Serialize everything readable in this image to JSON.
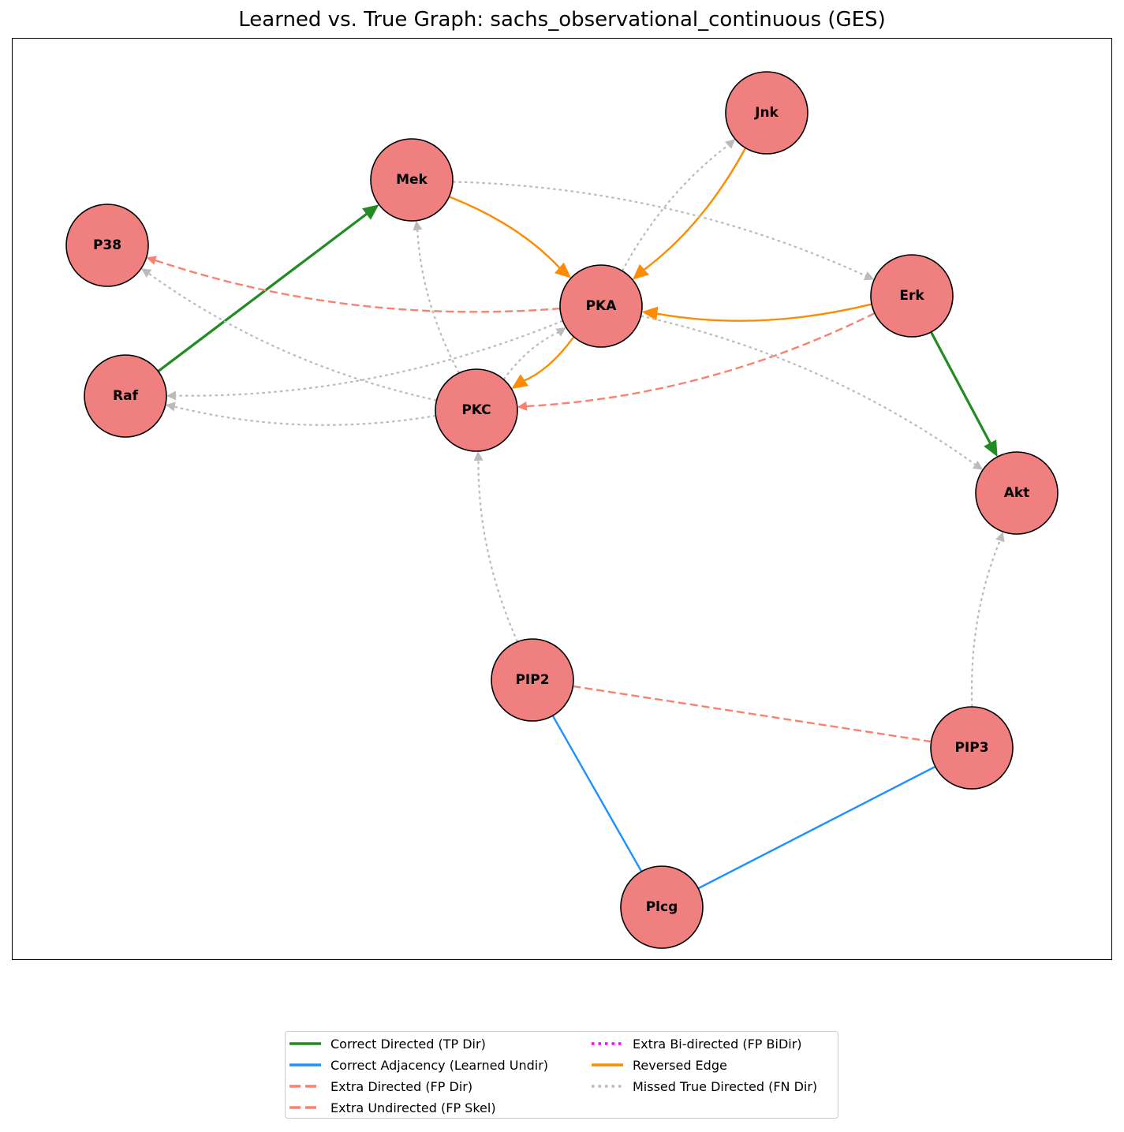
{
  "title": "Learned vs. True Graph: sachs_observational_continuous (GES)",
  "colors": {
    "node_fill": "#f08080",
    "node_stroke": "#000000",
    "tp_dir": "#228b22",
    "correct_adj": "#1e90ff",
    "fp_dir": "#fa8072",
    "fp_skel": "#fa8072",
    "fp_bidir": "#ff00ff",
    "reversed": "#ff8c00",
    "fn_dir": "#bbbbbb"
  },
  "nodes": [
    {
      "id": "Jnk",
      "label": "Jnk"
    },
    {
      "id": "Mek",
      "label": "Mek"
    },
    {
      "id": "P38",
      "label": "P38"
    },
    {
      "id": "PKA",
      "label": "PKA"
    },
    {
      "id": "Erk",
      "label": "Erk"
    },
    {
      "id": "Raf",
      "label": "Raf"
    },
    {
      "id": "PKC",
      "label": "PKC"
    },
    {
      "id": "Akt",
      "label": "Akt"
    },
    {
      "id": "PIP2",
      "label": "PIP2"
    },
    {
      "id": "PIP3",
      "label": "PIP3"
    },
    {
      "id": "Plcg",
      "label": "Plcg"
    }
  ],
  "edges": [
    {
      "from": "Raf",
      "to": "Mek",
      "type": "tp_dir"
    },
    {
      "from": "Erk",
      "to": "Akt",
      "type": "tp_dir"
    },
    {
      "from": "PIP2",
      "to": "Plcg",
      "type": "correct_adj"
    },
    {
      "from": "PIP3",
      "to": "Plcg",
      "type": "correct_adj"
    },
    {
      "from": "PKA",
      "to": "P38",
      "type": "fp_dir"
    },
    {
      "from": "Erk",
      "to": "PKC",
      "type": "fp_dir"
    },
    {
      "from": "PIP2",
      "to": "PIP3",
      "type": "fp_skel"
    },
    {
      "from": "Mek",
      "to": "PKA",
      "type": "reversed"
    },
    {
      "from": "Jnk",
      "to": "PKA",
      "type": "reversed"
    },
    {
      "from": "Erk",
      "to": "PKA",
      "type": "reversed"
    },
    {
      "from": "PKA",
      "to": "PKC",
      "type": "reversed"
    },
    {
      "from": "Mek",
      "to": "Erk",
      "type": "fn_dir"
    },
    {
      "from": "PKA",
      "to": "Jnk",
      "type": "fn_dir"
    },
    {
      "from": "PKC",
      "to": "Mek",
      "type": "fn_dir"
    },
    {
      "from": "PKC",
      "to": "P38",
      "type": "fn_dir"
    },
    {
      "from": "PKA",
      "to": "Raf",
      "type": "fn_dir"
    },
    {
      "from": "PKC",
      "to": "Raf",
      "type": "fn_dir"
    },
    {
      "from": "PKA",
      "to": "Akt",
      "type": "fn_dir"
    },
    {
      "from": "PIP2",
      "to": "PKC",
      "type": "fn_dir"
    },
    {
      "from": "PIP3",
      "to": "Akt",
      "type": "fn_dir"
    },
    {
      "from": "PKC",
      "to": "PKA",
      "type": "fn_dir"
    }
  ],
  "legend": [
    {
      "label": "Correct Directed (TP Dir)",
      "type": "tp_dir"
    },
    {
      "label": "Correct Adjacency (Learned Undir)",
      "type": "correct_adj"
    },
    {
      "label": "Extra Directed (FP Dir)",
      "type": "fp_dir"
    },
    {
      "label": "Extra Undirected (FP Skel)",
      "type": "fp_skel"
    },
    {
      "label": "Extra Bi-directed (FP BiDir)",
      "type": "fp_bidir"
    },
    {
      "label": "Reversed Edge",
      "type": "reversed"
    },
    {
      "label": "Missed True Directed (FN Dir)",
      "type": "fn_dir"
    }
  ]
}
